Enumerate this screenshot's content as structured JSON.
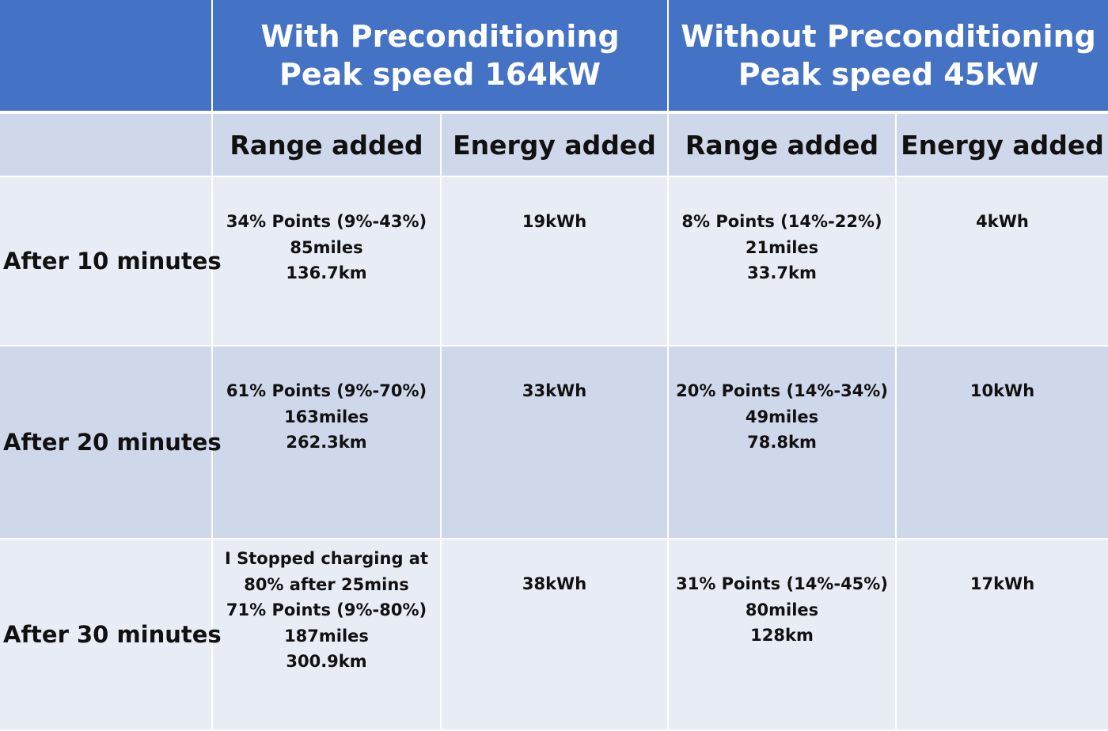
{
  "header": {
    "with": {
      "line1": "With Preconditioning",
      "line2": "Peak speed 164kW"
    },
    "without": {
      "line1": "Without Preconditioning",
      "line2": "Peak speed 45kW"
    }
  },
  "subheader": {
    "range_with": "Range added",
    "energy_with": "Energy added",
    "range_without": "Range added",
    "energy_without": "Energy added"
  },
  "rows": [
    {
      "label": "After 10 minutes",
      "with_range": [
        "34% Points (9%-43%)",
        "85miles",
        "136.7km"
      ],
      "with_energy": "19kWh",
      "without_range": [
        "8% Points (14%-22%)",
        "21miles",
        "33.7km"
      ],
      "without_energy": "4kWh"
    },
    {
      "label": "After 20 minutes",
      "with_range": [
        "61% Points (9%-70%)",
        "163miles",
        "262.3km"
      ],
      "with_energy": "33kWh",
      "without_range": [
        "20% Points (14%-34%)",
        "49miles",
        "78.8km"
      ],
      "without_energy": "10kWh"
    },
    {
      "label": "After 30 minutes",
      "with_range": [
        "I Stopped charging at",
        "80% after 25mins",
        "71% Points (9%-80%)",
        "187miles",
        "300.9km"
      ],
      "with_energy": "38kWh",
      "without_range": [
        "31% Points (14%-45%)",
        "80miles",
        "128km"
      ],
      "without_energy": "17kWh"
    }
  ]
}
